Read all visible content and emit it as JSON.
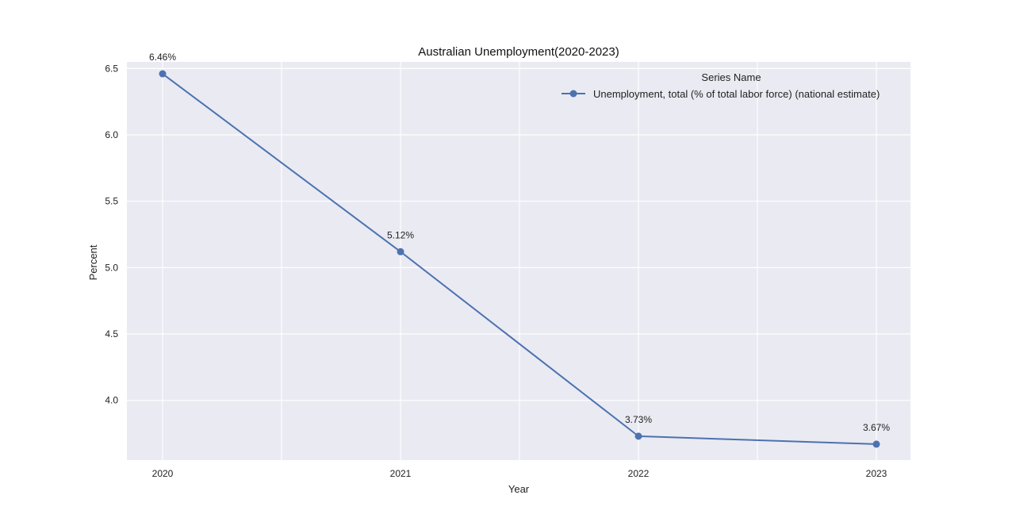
{
  "chart_data": {
    "type": "line",
    "title": "Australian Unemployment(2020-2023)",
    "xlabel": "Year",
    "ylabel": "Percent",
    "categories": [
      "2020",
      "2021",
      "2022",
      "2023"
    ],
    "series": [
      {
        "name": "Unemployment, total (% of total labor force) (national estimate)",
        "values": [
          6.46,
          5.12,
          3.73,
          3.67
        ],
        "labels": [
          "6.46%",
          "5.12%",
          "3.73%",
          "3.67%"
        ],
        "color": "#4c72b0"
      }
    ],
    "yticks": [
      "4.0",
      "4.5",
      "5.0",
      "5.5",
      "6.0",
      "6.5"
    ],
    "ylim": [
      3.55,
      6.55
    ],
    "legend": {
      "title": "Series Name",
      "placement": "top-right"
    },
    "grid": true,
    "background_color": "#eaeaf2"
  }
}
